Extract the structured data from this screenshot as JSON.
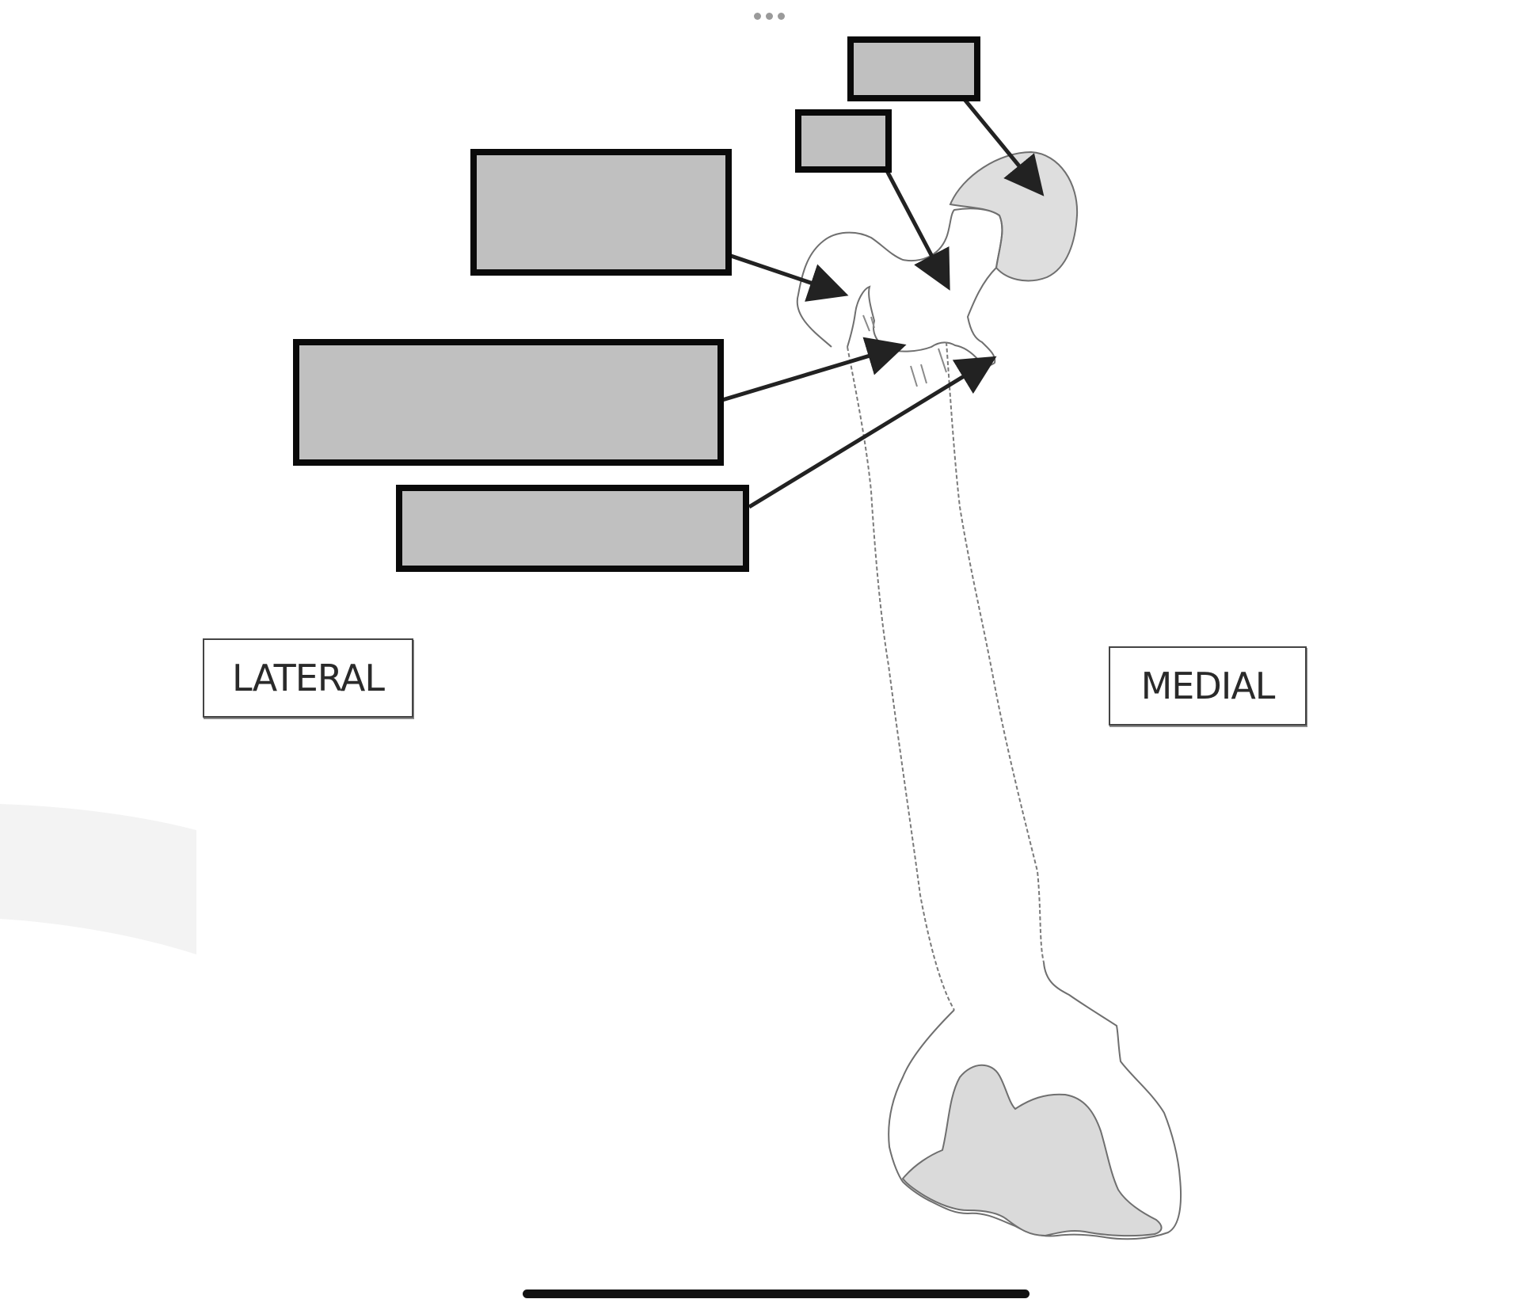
{
  "labels": {
    "lateral": "LATERAL",
    "medial": "MEDIAL"
  },
  "answer_boxes": [
    {
      "id": "head",
      "label": ""
    },
    {
      "id": "neck",
      "label": ""
    },
    {
      "id": "greater-trochanter",
      "label": ""
    },
    {
      "id": "intertrochanteric",
      "label": ""
    },
    {
      "id": "lesser-trochanter",
      "label": ""
    }
  ],
  "colors": {
    "box_fill": "#c0c0c0",
    "box_border": "#0a0a0a",
    "cartilage_fill": "#dcdcdc",
    "bone_outline": "#6f6f6f",
    "arrow": "#222222"
  },
  "icons": {
    "more": "more-dots-icon",
    "home": "home-indicator"
  }
}
